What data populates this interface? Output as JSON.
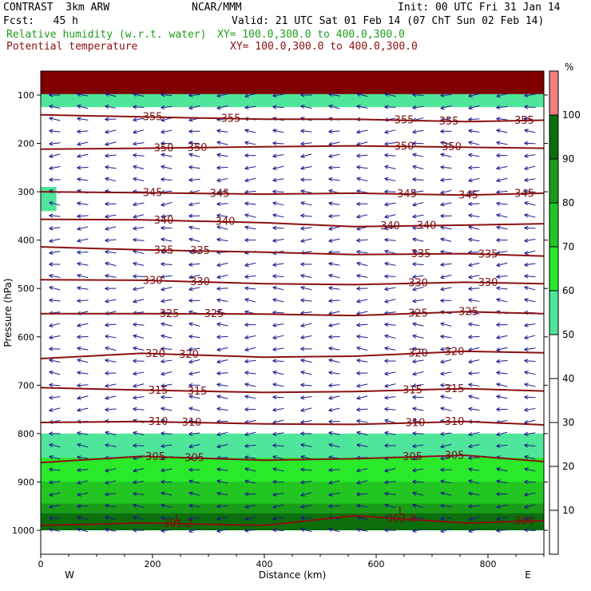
{
  "header": {
    "model": "CONTRAST  3km ARW",
    "org": "NCAR/MMM",
    "init": "Init: 00 UTC Fri 31 Jan 14",
    "fcst": "Fcst:   45 h",
    "valid": "Valid: 21 UTC Sat 01 Feb 14 (07 ChT Sun 02 Feb 14)",
    "field1": "Relative humidity (w.r.t. water)",
    "field1_xy": "XY= 100.0,300.0 to 400.0,300.0",
    "field2": "Potential temperature",
    "field2_xy": "XY= 100.0,300.0 to 400.0,300.0"
  },
  "colors": {
    "rh_text": "#1e9e1e",
    "theta_text": "#8b1010",
    "theta_line": "#8b1010",
    "wind_arrow": "#1a1a8c",
    "rh_50": "#4fe59a",
    "rh_60": "#2ae82a",
    "rh_70": "#22c522",
    "rh_80": "#1a9c1a",
    "rh_90": "#0c6e0c",
    "rh_100": "#7f0000",
    "rh_above": "#f08080"
  },
  "chart_data": {
    "type": "cross-section",
    "xlabel": "Distance (km)",
    "ylabel": "Pressure (hPa)",
    "xlim": [
      0,
      900
    ],
    "ylim": [
      1010,
      50
    ],
    "x_ticks": [
      0,
      200,
      400,
      600,
      800
    ],
    "y_ticks": [
      100,
      200,
      300,
      400,
      500,
      600,
      700,
      800,
      900,
      1000
    ],
    "x_end_labels": [
      "W",
      "E"
    ],
    "theta_contours": [
      {
        "value": 355,
        "p": [
          141,
          145,
          150,
          150,
          155,
          152
        ],
        "x": [
          0,
          180,
          400,
          560,
          760,
          900
        ],
        "labels_x": [
          200,
          340,
          650,
          730,
          865
        ],
        "label_text": [
          "355",
          "355",
          "355",
          "355",
          "355"
        ]
      },
      {
        "value": 350,
        "p": [
          212,
          210,
          207,
          205,
          208,
          210
        ],
        "x": [
          0,
          180,
          400,
          560,
          760,
          900
        ],
        "labels_x": [
          220,
          280,
          650,
          735
        ],
        "label_text": [
          "350",
          "350",
          "350",
          "350"
        ]
      },
      {
        "value": 345,
        "p": [
          300,
          302,
          305,
          303,
          307,
          303
        ],
        "x": [
          0,
          180,
          400,
          560,
          760,
          900
        ],
        "labels_x": [
          200,
          320,
          655,
          765,
          865
        ],
        "label_text": [
          "345",
          "345",
          "345",
          "345",
          "345"
        ]
      },
      {
        "value": 340,
        "p": [
          357,
          358,
          364,
          372,
          369,
          366
        ],
        "x": [
          0,
          180,
          400,
          560,
          760,
          900
        ],
        "labels_x": [
          220,
          330,
          625,
          690
        ],
        "label_text": [
          "340",
          "340",
          "340",
          "340"
        ]
      },
      {
        "value": 335,
        "p": [
          414,
          420,
          425,
          430,
          428,
          433
        ],
        "x": [
          0,
          180,
          400,
          560,
          760,
          900
        ],
        "labels_x": [
          220,
          285,
          680,
          800
        ],
        "label_text": [
          "335",
          "335",
          "335",
          "335"
        ]
      },
      {
        "value": 330,
        "p": [
          482,
          483,
          490,
          492,
          487,
          490
        ],
        "x": [
          0,
          180,
          400,
          560,
          760,
          900
        ],
        "labels_x": [
          200,
          285,
          675,
          800
        ],
        "label_text": [
          "330",
          "330",
          "330",
          "330"
        ]
      },
      {
        "value": 325,
        "p": [
          552,
          552,
          553,
          556,
          548,
          552
        ],
        "x": [
          0,
          180,
          400,
          560,
          760,
          900
        ],
        "labels_x": [
          230,
          310,
          675,
          765
        ],
        "label_text": [
          "325",
          "325",
          "325",
          "325"
        ]
      },
      {
        "value": 320,
        "p": [
          645,
          634,
          642,
          640,
          630,
          633
        ],
        "x": [
          0,
          180,
          400,
          560,
          760,
          900
        ],
        "labels_x": [
          205,
          265,
          675,
          740
        ],
        "label_text": [
          "320",
          "320",
          "320",
          "320"
        ]
      },
      {
        "value": 315,
        "p": [
          705,
          710,
          715,
          713,
          707,
          712
        ],
        "x": [
          0,
          180,
          400,
          560,
          760,
          900
        ],
        "labels_x": [
          210,
          280,
          665,
          740
        ],
        "label_text": [
          "315",
          "315",
          "315",
          "315"
        ]
      },
      {
        "value": 310,
        "p": [
          777,
          775,
          780,
          781,
          775,
          782
        ],
        "x": [
          0,
          180,
          400,
          560,
          760,
          900
        ],
        "labels_x": [
          210,
          270,
          670,
          740
        ],
        "label_text": [
          "310",
          "310",
          "310",
          "310"
        ]
      },
      {
        "value": 305,
        "p": [
          860,
          847,
          855,
          852,
          845,
          858
        ],
        "x": [
          0,
          180,
          400,
          560,
          760,
          900
        ],
        "labels_x": [
          205,
          275,
          665,
          740
        ],
        "label_text": [
          "305",
          "305",
          "305",
          "305"
        ]
      },
      {
        "value": 300,
        "p": [
          990,
          985,
          990,
          970,
          985,
          980
        ],
        "x": [
          0,
          180,
          400,
          560,
          760,
          900
        ],
        "labels_x": [
          245,
          645,
          865
        ],
        "label_text": [
          "301.2",
          "302.8",
          "300"
        ]
      }
    ],
    "rh_regions": [
      {
        "level": 100,
        "x": [
          0,
          900
        ],
        "p_top": 50,
        "p_bottom": 100
      },
      {
        "level": 50,
        "x": [
          0,
          900
        ],
        "p_top": 98,
        "p_bottom": 125
      },
      {
        "level": 50,
        "x": [
          0,
          28
        ],
        "p_top": 290,
        "p_bottom": 340
      },
      {
        "level": 50,
        "x": [
          0,
          900
        ],
        "p_top": 800,
        "p_bottom": 1000
      },
      {
        "level": 60,
        "x": [
          0,
          900
        ],
        "p_top": 850,
        "p_bottom": 1000
      },
      {
        "level": 70,
        "x": [
          0,
          900
        ],
        "p_top": 900,
        "p_bottom": 1000
      },
      {
        "level": 80,
        "x": [
          0,
          900
        ],
        "p_top": 945,
        "p_bottom": 1000
      },
      {
        "level": 90,
        "x": [
          0,
          900
        ],
        "p_top": 965,
        "p_bottom": 1000
      }
    ],
    "extrema_labels": [
      {
        "text": "L",
        "x": 245,
        "p": 975
      },
      {
        "text": "L",
        "x": 645,
        "p": 960
      }
    ],
    "wind_arrow_rows_p": [
      100,
      125,
      150,
      175,
      200,
      225,
      250,
      275,
      300,
      325,
      350,
      375,
      400,
      425,
      450,
      475,
      500,
      525,
      550,
      575,
      600,
      625,
      650,
      675,
      700,
      725,
      750,
      775,
      800,
      825,
      850,
      875,
      900,
      925,
      950,
      975,
      1000
    ],
    "wind_arrow_cols_x": [
      25,
      75,
      125,
      175,
      225,
      275,
      325,
      375,
      425,
      475,
      525,
      575,
      625,
      675,
      725,
      775,
      825,
      875
    ],
    "colorbar": {
      "unit": "%",
      "levels": [
        10,
        20,
        30,
        40,
        50,
        60,
        70,
        80,
        90,
        100
      ]
    }
  }
}
